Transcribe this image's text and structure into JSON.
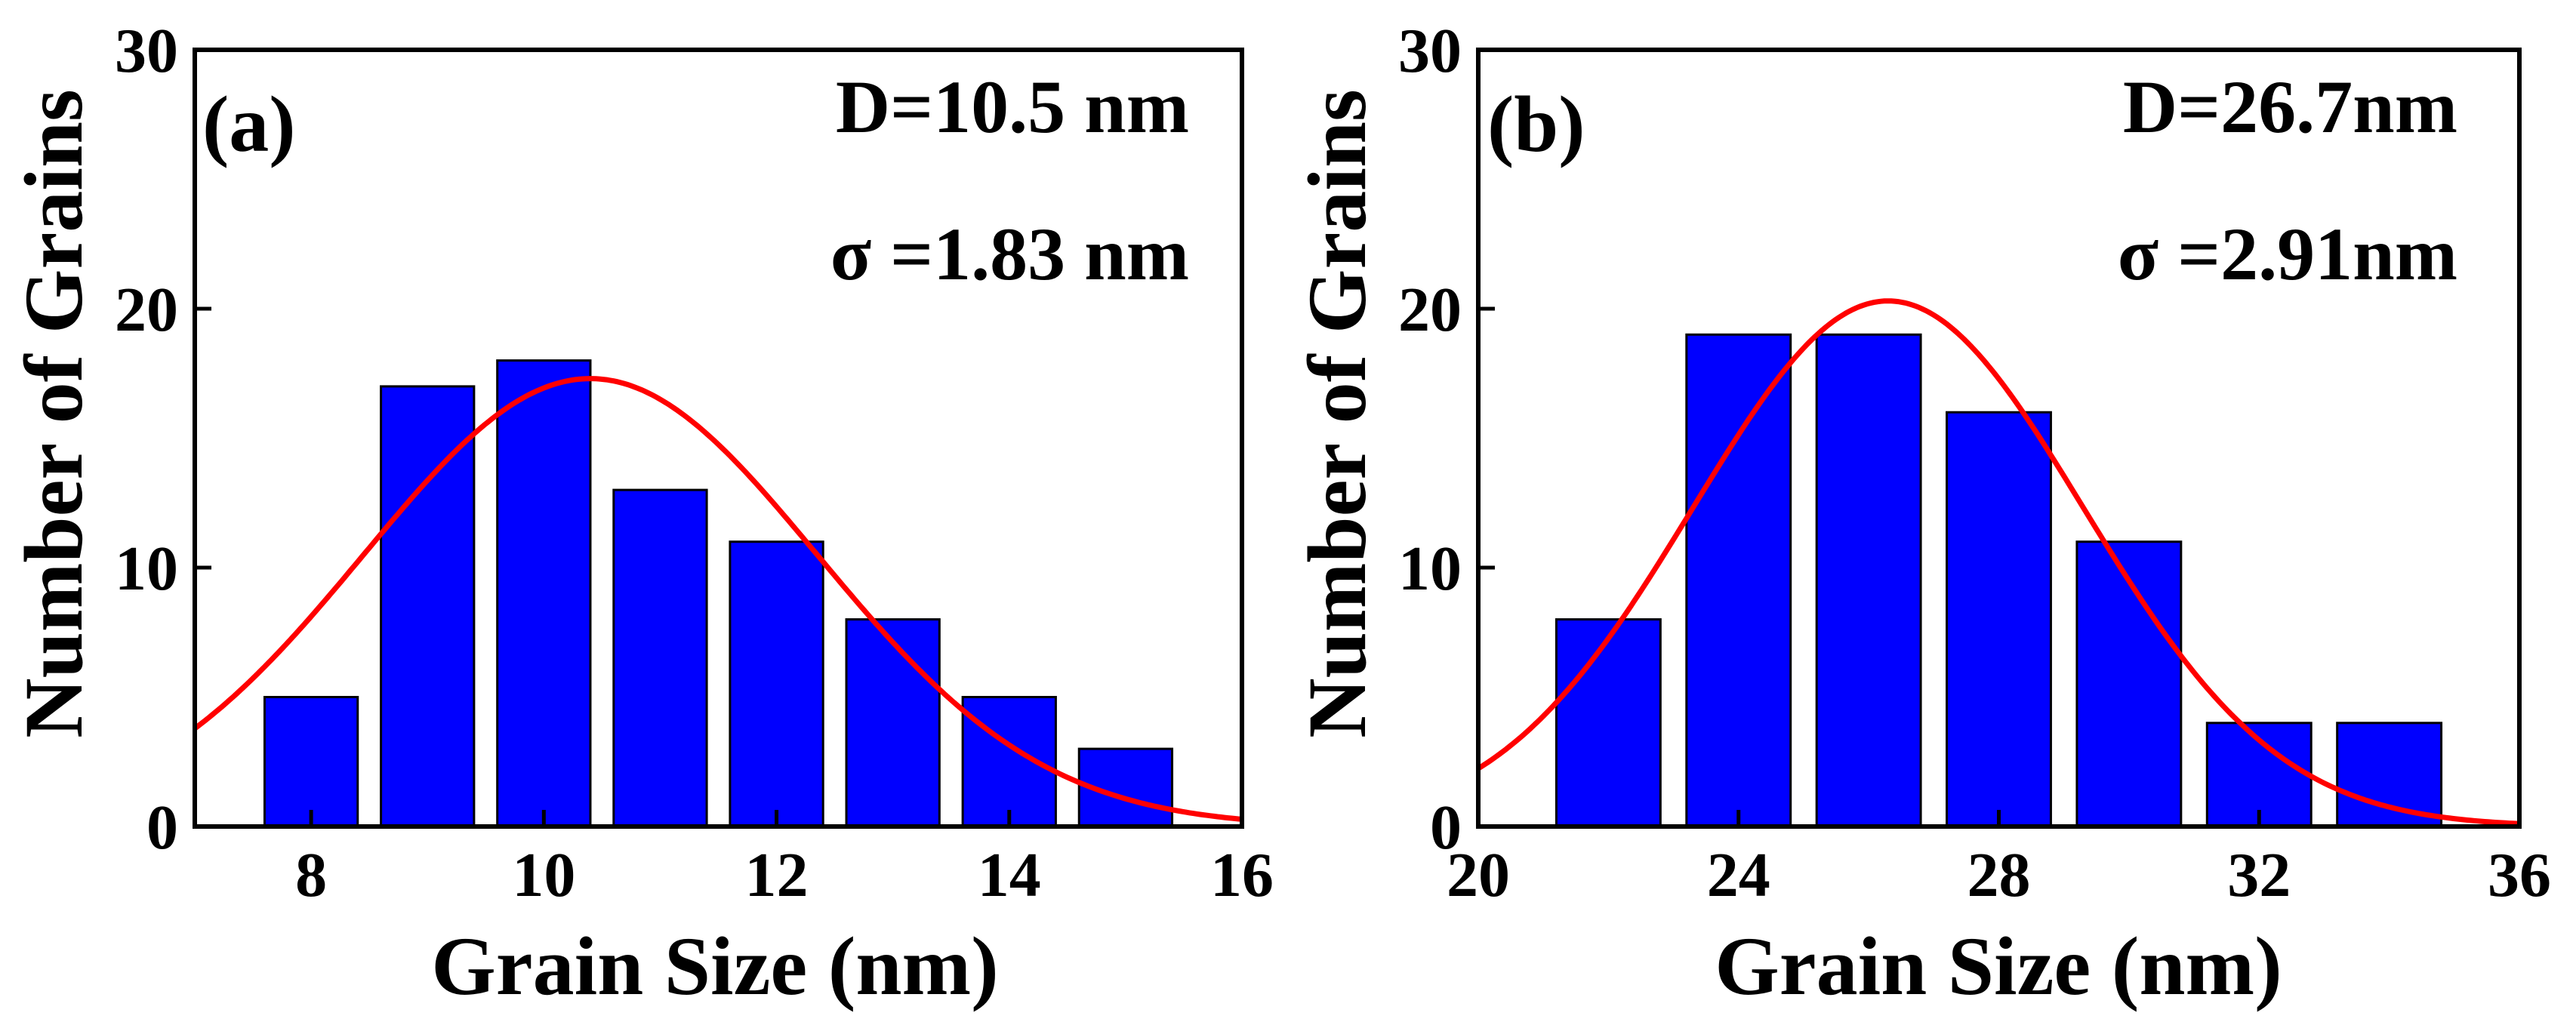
{
  "colors": {
    "bar_fill": "#0000ff",
    "bar_stroke": "#000000",
    "fit_line": "#ff0000",
    "frame": "#000000"
  },
  "chart_data": [
    {
      "type": "bar",
      "panel_label": "(a)",
      "stats": {
        "mean": "D=10.5 nm",
        "sigma": "σ =1.83 nm"
      },
      "xlabel": "Grain Size (nm)",
      "ylabel": "Number of Grains",
      "xlim": [
        7,
        16
      ],
      "ylim": [
        0,
        30
      ],
      "x_ticks": [
        8,
        10,
        12,
        14,
        16
      ],
      "y_ticks": [
        0,
        10,
        20,
        30
      ],
      "bin_width": 0.8,
      "bin_centers": [
        8,
        9,
        10,
        11,
        12,
        13,
        14,
        15
      ],
      "counts": [
        5,
        17,
        18,
        13,
        11,
        8,
        5,
        3
      ],
      "fit": {
        "type": "gaussian",
        "mean": 10.4,
        "sigma": 1.95,
        "peak": 17.3
      }
    },
    {
      "type": "bar",
      "panel_label": "(b)",
      "stats": {
        "mean": "D=26.7nm",
        "sigma": "σ =2.91nm"
      },
      "xlabel": "Grain Size (nm)",
      "ylabel": "Number of Grains",
      "xlim": [
        20,
        36
      ],
      "ylim": [
        0,
        30
      ],
      "x_ticks": [
        20,
        24,
        28,
        32,
        36
      ],
      "y_ticks": [
        0,
        10,
        20,
        30
      ],
      "bin_width": 1.6,
      "bin_centers": [
        22,
        24,
        26,
        28,
        30,
        32,
        34
      ],
      "counts": [
        8,
        19,
        19,
        16,
        11,
        4,
        4
      ],
      "fit": {
        "type": "gaussian",
        "mean": 26.3,
        "sigma": 3.0,
        "peak": 20.3
      }
    }
  ]
}
